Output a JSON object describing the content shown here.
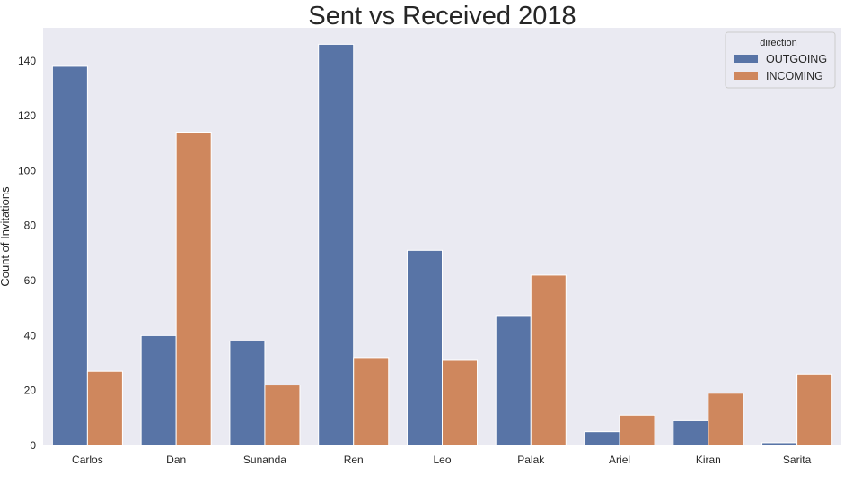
{
  "chart_data": {
    "type": "bar",
    "title": "Sent vs Received 2018",
    "xlabel": "",
    "ylabel": "Count of Invitations",
    "categories": [
      "Carlos",
      "Dan",
      "Sunanda",
      "Ren",
      "Leo",
      "Palak",
      "Ariel",
      "Kiran",
      "Sarita"
    ],
    "series": [
      {
        "name": "OUTGOING",
        "color": "#5874a6",
        "values": [
          138,
          40,
          38,
          146,
          71,
          47,
          5,
          9,
          1
        ]
      },
      {
        "name": "INCOMING",
        "color": "#cf875d",
        "values": [
          27,
          114,
          22,
          32,
          31,
          62,
          11,
          19,
          26
        ]
      }
    ],
    "ylim": [
      0,
      152
    ],
    "yticks": [
      0,
      20,
      40,
      60,
      80,
      100,
      120,
      140
    ],
    "grid": false,
    "background": "#eaeaf2",
    "legend": {
      "title": "direction",
      "placement": "top-right"
    }
  }
}
